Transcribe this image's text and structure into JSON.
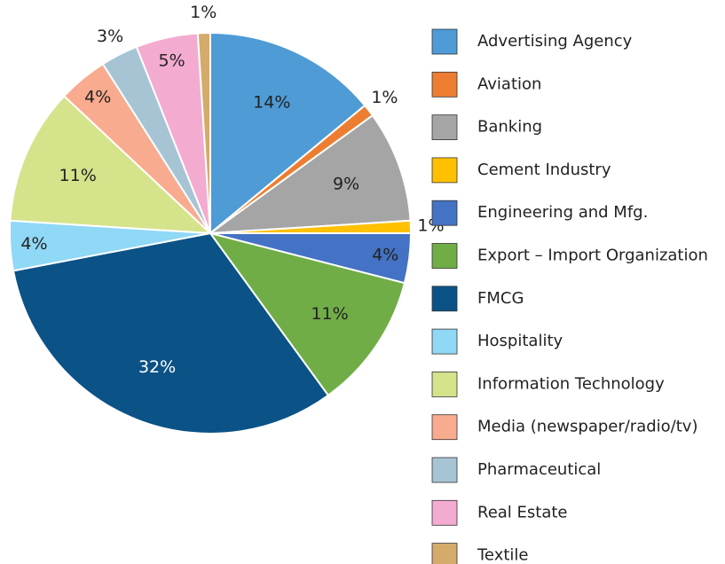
{
  "chart_data": {
    "type": "pie",
    "categories": [
      "Advertising Agency",
      "Aviation",
      "Banking",
      "Cement Industry",
      "Engineering and Mfg.",
      "Export – Import Organization",
      "FMCG",
      "Hospitality",
      "Information Technology",
      "Media (newspaper/radio/tv)",
      "Pharmaceutical",
      "Real Estate",
      "Textile"
    ],
    "values": [
      14,
      1,
      9,
      1,
      4,
      11,
      32,
      4,
      11,
      4,
      3,
      5,
      1
    ],
    "value_labels": [
      "14%",
      "1%",
      "9%",
      "1%",
      "4%",
      "11%",
      "32%",
      "4%",
      "11%",
      "4%",
      "3%",
      "5%",
      "1%"
    ],
    "colors": [
      "#4e9bd6",
      "#ed7d31",
      "#a5a5a5",
      "#ffc000",
      "#4472c4",
      "#70ad47",
      "#0b5287",
      "#8fd8f6",
      "#d5e38b",
      "#f8ab8e",
      "#a6c4d4",
      "#f4abd0",
      "#d4ab6a"
    ],
    "legend": "right"
  }
}
